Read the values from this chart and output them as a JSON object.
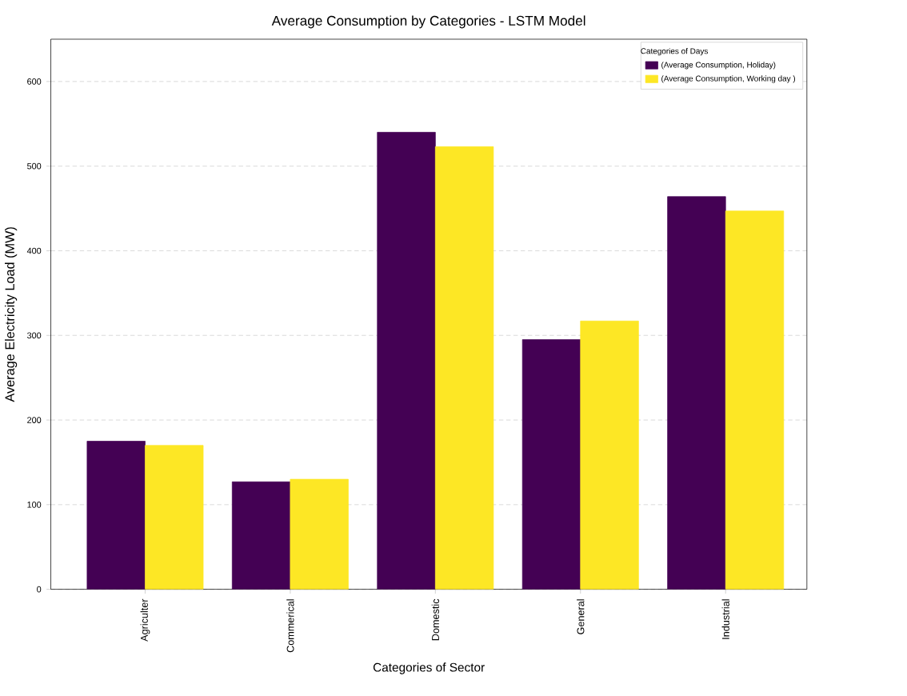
{
  "chart_data": {
    "type": "bar",
    "title": "Average  Consumption by Categories - LSTM Model",
    "xlabel": "Categories of Sector",
    "ylabel": "Average Electricity Load (MW)",
    "legend_title": "Categories of Days",
    "categories": [
      "Agriculter",
      "Commerical",
      "Domestic",
      "General",
      "Industrial"
    ],
    "series": [
      {
        "name": "(Average Consumption, Holiday)",
        "color": "#440154",
        "values": [
          175,
          127,
          540,
          295,
          464
        ]
      },
      {
        "name": "(Average Consumption, Working day )",
        "color": "#fde725",
        "values": [
          170,
          130,
          523,
          317,
          447
        ]
      }
    ],
    "ylim": [
      0,
      650
    ],
    "yticks": [
      0,
      100,
      200,
      300,
      400,
      500,
      600
    ],
    "grid": "y",
    "legend": "top right"
  }
}
